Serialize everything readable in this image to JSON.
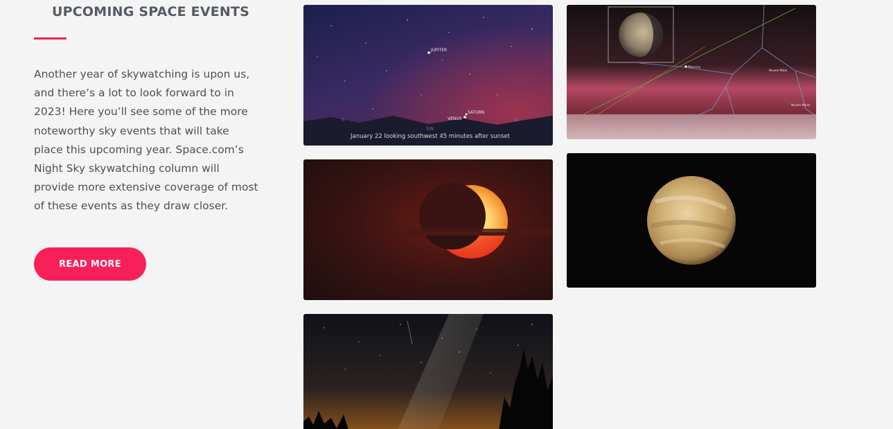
{
  "section": {
    "title": "UPCOMING SPACE EVENTS",
    "description": "Another year of skywatching is upon us, and there’s a lot to look forward to in 2023! Here you’ll see some of the more noteworthy sky events that will take place this upcoming year. Space.com’s Night Sky skywatching column will provide more extensive coverage of most of these events as they draw closer.",
    "button_label": "READ MORE"
  },
  "colors": {
    "accent": "#f9205a",
    "underline": "#f0234f",
    "title": "#565b63",
    "text": "#4f4f4f",
    "background": "#f4f4f4"
  },
  "gallery": {
    "sky_chart": {
      "jupiter": "JUPITER",
      "saturn": "SATURN",
      "venus": "VENUS",
      "dir_s": "S",
      "dir_sw": "SW",
      "dir_w": "W",
      "caption": "January 22 looking southwest 45 minutes after sunset"
    },
    "mercury_chart": {
      "mercury": "Mercury",
      "cloud1": "Nuvem Maior",
      "cloud2": "Nuvem Menor"
    }
  }
}
